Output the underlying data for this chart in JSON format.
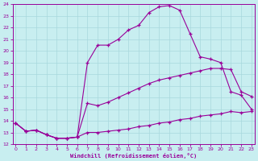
{
  "xlabel": "Windchill (Refroidissement éolien,°C)",
  "background_color": "#c8eef0",
  "grid_color": "#a8d8dc",
  "line_color": "#990099",
  "xlim": [
    -0.3,
    23.3
  ],
  "ylim": [
    12,
    24
  ],
  "xticks": [
    0,
    1,
    2,
    3,
    4,
    5,
    6,
    7,
    8,
    9,
    10,
    11,
    12,
    13,
    14,
    15,
    16,
    17,
    18,
    19,
    20,
    21,
    22,
    23
  ],
  "yticks": [
    12,
    13,
    14,
    15,
    16,
    17,
    18,
    19,
    20,
    21,
    22,
    23,
    24
  ],
  "curve1_x": [
    0,
    1,
    2,
    3,
    4,
    5,
    6,
    7,
    8,
    9,
    10,
    11,
    12,
    13,
    14,
    15,
    16,
    17,
    18,
    19,
    20,
    21,
    22,
    23
  ],
  "curve1_y": [
    13.8,
    13.1,
    13.2,
    12.8,
    12.5,
    12.5,
    12.6,
    13.0,
    13.0,
    13.1,
    13.2,
    13.3,
    13.5,
    13.6,
    13.8,
    13.9,
    14.1,
    14.2,
    14.4,
    14.5,
    14.6,
    14.8,
    14.7,
    14.8
  ],
  "curve2_x": [
    0,
    1,
    2,
    3,
    4,
    5,
    6,
    7,
    8,
    9,
    10,
    11,
    12,
    13,
    14,
    15,
    16,
    17,
    18,
    19,
    20,
    21,
    22,
    23
  ],
  "curve2_y": [
    13.8,
    13.1,
    13.2,
    12.8,
    12.5,
    12.5,
    12.6,
    15.5,
    15.3,
    15.6,
    16.0,
    16.4,
    16.8,
    17.2,
    17.5,
    17.7,
    17.9,
    18.1,
    18.3,
    18.5,
    18.5,
    18.4,
    16.5,
    16.1
  ],
  "curve3_x": [
    0,
    1,
    2,
    3,
    4,
    5,
    6,
    7,
    8,
    9,
    10,
    11,
    12,
    13,
    14,
    15,
    16,
    17,
    18,
    19,
    20,
    21,
    22,
    23
  ],
  "curve3_y": [
    13.8,
    13.1,
    13.2,
    12.8,
    12.5,
    12.5,
    12.6,
    19.0,
    20.5,
    20.5,
    21.0,
    21.8,
    22.2,
    23.3,
    23.8,
    23.9,
    23.5,
    21.5,
    19.5,
    19.3,
    19.0,
    16.5,
    16.2,
    15.0
  ]
}
